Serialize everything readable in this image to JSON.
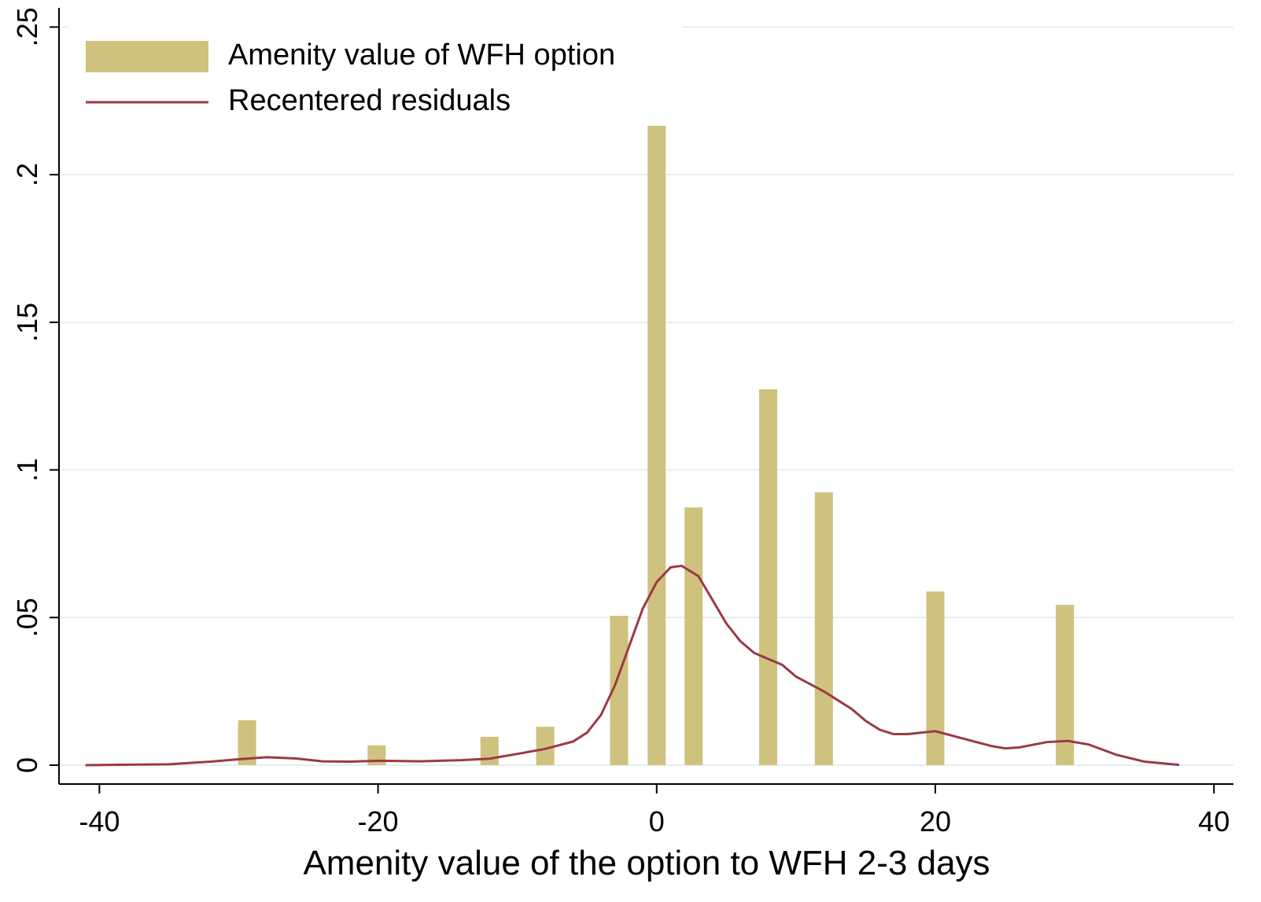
{
  "chart_data": {
    "type": "bar",
    "x_label": "Amenity value of the option to WFH 2-3 days",
    "xlim": [
      -42.9,
      41.4
    ],
    "xticks": [
      -40,
      -20,
      0,
      20,
      40
    ],
    "ylim": [
      -0.0064,
      0.2565
    ],
    "yticks": [
      {
        "value": 0,
        "label": "0"
      },
      {
        "value": 0.05,
        "label": ".05"
      },
      {
        "value": 0.1,
        "label": ".1"
      },
      {
        "value": 0.15,
        "label": ".15"
      },
      {
        "value": 0.2,
        "label": ".2"
      },
      {
        "value": 0.25,
        "label": ".25"
      }
    ],
    "grid": true,
    "legend": "top-left",
    "series": [
      {
        "name": "Amenity value of WFH option",
        "type": "bar",
        "color": "#cfc27e",
        "x": [
          -29.4,
          -20.1,
          -12.0,
          -8.0,
          -2.7,
          0,
          2.65,
          8.0,
          12.0,
          20.0,
          29.3
        ],
        "values": [
          0.0152,
          0.0067,
          0.0096,
          0.013,
          0.0506,
          0.217,
          0.0873,
          0.1273,
          0.0924,
          0.0588,
          0.0543
        ]
      },
      {
        "name": "Recentered residuals",
        "type": "line",
        "color": "#9b3a45",
        "x": [
          -41,
          -35,
          -32,
          -30,
          -28,
          -26,
          -24,
          -22,
          -20,
          -17,
          -14,
          -12,
          -10,
          -8,
          -6,
          -5,
          -4,
          -3,
          -2,
          -1,
          0,
          1,
          1.8,
          3,
          4,
          5,
          6,
          7,
          8,
          9,
          10,
          12,
          14,
          15,
          16,
          17,
          18,
          20,
          22,
          24,
          25,
          26,
          28,
          29.5,
          31,
          33,
          35,
          37.5
        ],
        "values": [
          0,
          0.0003,
          0.0012,
          0.002,
          0.0027,
          0.0023,
          0.0013,
          0.0012,
          0.0015,
          0.0013,
          0.0017,
          0.0022,
          0.0038,
          0.0055,
          0.008,
          0.011,
          0.017,
          0.027,
          0.04,
          0.053,
          0.062,
          0.067,
          0.0675,
          0.064,
          0.056,
          0.048,
          0.042,
          0.038,
          0.036,
          0.034,
          0.03,
          0.025,
          0.019,
          0.015,
          0.012,
          0.0105,
          0.0105,
          0.0115,
          0.009,
          0.0065,
          0.0057,
          0.006,
          0.0078,
          0.0082,
          0.007,
          0.0035,
          0.0012,
          0.0001
        ]
      }
    ]
  }
}
